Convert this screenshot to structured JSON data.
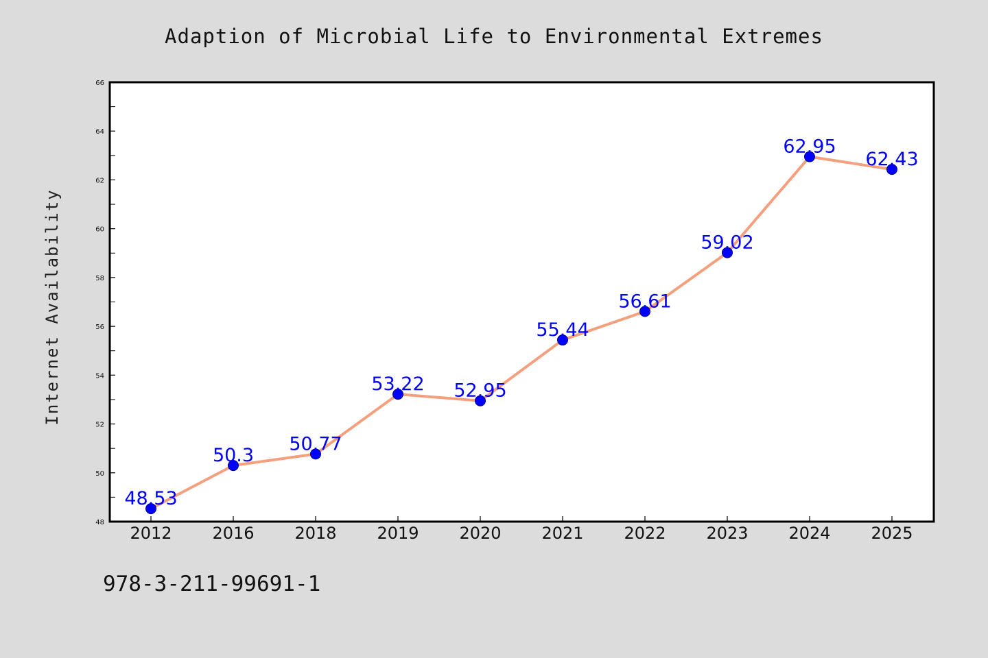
{
  "chart_data": {
    "type": "line",
    "title": "Adaption of Microbial Life to Environmental Extremes",
    "xlabel": "",
    "ylabel": "Internet Availability",
    "categories": [
      "2012",
      "2016",
      "2018",
      "2019",
      "2020",
      "2021",
      "2022",
      "2023",
      "2024",
      "2025"
    ],
    "series": [
      {
        "values": [
          48.53,
          50.3,
          50.77,
          53.22,
          52.95,
          55.44,
          56.61,
          59.02,
          62.95,
          62.43
        ],
        "line_color": "#f4a07f",
        "marker_color": "#0000ff"
      }
    ],
    "data_labels": [
      "48.53",
      "50.3",
      "50.77",
      "53.22",
      "52.95",
      "55.44",
      "56.61",
      "59.02",
      "62.95",
      "62.43"
    ],
    "ylim": [
      48,
      66
    ],
    "yticks": [
      48,
      50,
      52,
      54,
      56,
      58,
      60,
      62,
      64,
      66
    ],
    "ytick_labels": [
      "48",
      "50",
      "52",
      "54",
      "56",
      "58",
      "60",
      "62",
      "64",
      "66"
    ],
    "grid": false,
    "legend": "none",
    "data_label_color": "#0000ff"
  },
  "footer": {
    "code": "978-3-211-99691-1"
  }
}
